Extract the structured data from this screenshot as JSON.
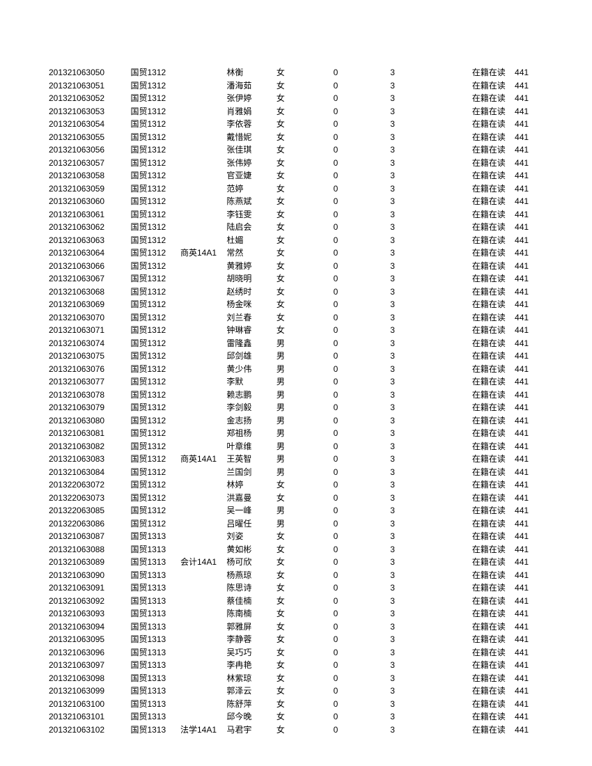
{
  "table": {
    "columns": {
      "id_width": 115,
      "class_width": 70,
      "group_width": 65,
      "name_width": 70,
      "gender_width": 80,
      "n1_width": 80,
      "n2_width": 115,
      "status_width": 60,
      "code_width": 40
    },
    "font_size": 12,
    "row_height": 18.5,
    "text_color": "#000000",
    "background_color": "#ffffff",
    "rows": [
      {
        "id": "201321063050",
        "class": "国贸1312",
        "group": "",
        "name": "林衡",
        "gender": "女",
        "n1": "0",
        "n2": "3",
        "status": "在籍在读",
        "code": "441"
      },
      {
        "id": "201321063051",
        "class": "国贸1312",
        "group": "",
        "name": "潘海茹",
        "gender": "女",
        "n1": "0",
        "n2": "3",
        "status": "在籍在读",
        "code": "441"
      },
      {
        "id": "201321063052",
        "class": "国贸1312",
        "group": "",
        "name": "张伊婷",
        "gender": "女",
        "n1": "0",
        "n2": "3",
        "status": "在籍在读",
        "code": "441"
      },
      {
        "id": "201321063053",
        "class": "国贸1312",
        "group": "",
        "name": "肖雅娟",
        "gender": "女",
        "n1": "0",
        "n2": "3",
        "status": "在籍在读",
        "code": "441"
      },
      {
        "id": "201321063054",
        "class": "国贸1312",
        "group": "",
        "name": "李依蓉",
        "gender": "女",
        "n1": "0",
        "n2": "3",
        "status": "在籍在读",
        "code": "441"
      },
      {
        "id": "201321063055",
        "class": "国贸1312",
        "group": "",
        "name": "戴惜妮",
        "gender": "女",
        "n1": "0",
        "n2": "3",
        "status": "在籍在读",
        "code": "441"
      },
      {
        "id": "201321063056",
        "class": "国贸1312",
        "group": "",
        "name": "张佳琪",
        "gender": "女",
        "n1": "0",
        "n2": "3",
        "status": "在籍在读",
        "code": "441"
      },
      {
        "id": "201321063057",
        "class": "国贸1312",
        "group": "",
        "name": "张伟婷",
        "gender": "女",
        "n1": "0",
        "n2": "3",
        "status": "在籍在读",
        "code": "441"
      },
      {
        "id": "201321063058",
        "class": "国贸1312",
        "group": "",
        "name": "官亚婕",
        "gender": "女",
        "n1": "0",
        "n2": "3",
        "status": "在籍在读",
        "code": "441"
      },
      {
        "id": "201321063059",
        "class": "国贸1312",
        "group": "",
        "name": "范婷",
        "gender": "女",
        "n1": "0",
        "n2": "3",
        "status": "在籍在读",
        "code": "441"
      },
      {
        "id": "201321063060",
        "class": "国贸1312",
        "group": "",
        "name": "陈燕斌",
        "gender": "女",
        "n1": "0",
        "n2": "3",
        "status": "在籍在读",
        "code": "441"
      },
      {
        "id": "201321063061",
        "class": "国贸1312",
        "group": "",
        "name": "李钰雯",
        "gender": "女",
        "n1": "0",
        "n2": "3",
        "status": "在籍在读",
        "code": "441"
      },
      {
        "id": "201321063062",
        "class": "国贸1312",
        "group": "",
        "name": "陆启会",
        "gender": "女",
        "n1": "0",
        "n2": "3",
        "status": "在籍在读",
        "code": "441"
      },
      {
        "id": "201321063063",
        "class": "国贸1312",
        "group": "",
        "name": "杜媚",
        "gender": "女",
        "n1": "0",
        "n2": "3",
        "status": "在籍在读",
        "code": "441"
      },
      {
        "id": "201321063064",
        "class": "国贸1312",
        "group": "商英14A1",
        "name": "常然",
        "gender": "女",
        "n1": "0",
        "n2": "3",
        "status": "在籍在读",
        "code": "441"
      },
      {
        "id": "201321063066",
        "class": "国贸1312",
        "group": "",
        "name": "黄雅婷",
        "gender": "女",
        "n1": "0",
        "n2": "3",
        "status": "在籍在读",
        "code": "441"
      },
      {
        "id": "201321063067",
        "class": "国贸1312",
        "group": "",
        "name": "胡晓明",
        "gender": "女",
        "n1": "0",
        "n2": "3",
        "status": "在籍在读",
        "code": "441"
      },
      {
        "id": "201321063068",
        "class": "国贸1312",
        "group": "",
        "name": "赵绣时",
        "gender": "女",
        "n1": "0",
        "n2": "3",
        "status": "在籍在读",
        "code": "441"
      },
      {
        "id": "201321063069",
        "class": "国贸1312",
        "group": "",
        "name": "杨金咪",
        "gender": "女",
        "n1": "0",
        "n2": "3",
        "status": "在籍在读",
        "code": "441"
      },
      {
        "id": "201321063070",
        "class": "国贸1312",
        "group": "",
        "name": "刘兰春",
        "gender": "女",
        "n1": "0",
        "n2": "3",
        "status": "在籍在读",
        "code": "441"
      },
      {
        "id": "201321063071",
        "class": "国贸1312",
        "group": "",
        "name": "钟琳睿",
        "gender": "女",
        "n1": "0",
        "n2": "3",
        "status": "在籍在读",
        "code": "441"
      },
      {
        "id": "201321063074",
        "class": "国贸1312",
        "group": "",
        "name": "雷隆鑫",
        "gender": "男",
        "n1": "0",
        "n2": "3",
        "status": "在籍在读",
        "code": "441"
      },
      {
        "id": "201321063075",
        "class": "国贸1312",
        "group": "",
        "name": "邱剑雄",
        "gender": "男",
        "n1": "0",
        "n2": "3",
        "status": "在籍在读",
        "code": "441"
      },
      {
        "id": "201321063076",
        "class": "国贸1312",
        "group": "",
        "name": "黄少伟",
        "gender": "男",
        "n1": "0",
        "n2": "3",
        "status": "在籍在读",
        "code": "441"
      },
      {
        "id": "201321063077",
        "class": "国贸1312",
        "group": "",
        "name": "李默",
        "gender": "男",
        "n1": "0",
        "n2": "3",
        "status": "在籍在读",
        "code": "441"
      },
      {
        "id": "201321063078",
        "class": "国贸1312",
        "group": "",
        "name": "赖志鹏",
        "gender": "男",
        "n1": "0",
        "n2": "3",
        "status": "在籍在读",
        "code": "441"
      },
      {
        "id": "201321063079",
        "class": "国贸1312",
        "group": "",
        "name": "李剑毅",
        "gender": "男",
        "n1": "0",
        "n2": "3",
        "status": "在籍在读",
        "code": "441"
      },
      {
        "id": "201321063080",
        "class": "国贸1312",
        "group": "",
        "name": "金志扬",
        "gender": "男",
        "n1": "0",
        "n2": "3",
        "status": "在籍在读",
        "code": "441"
      },
      {
        "id": "201321063081",
        "class": "国贸1312",
        "group": "",
        "name": "郑祖杨",
        "gender": "男",
        "n1": "0",
        "n2": "3",
        "status": "在籍在读",
        "code": "441"
      },
      {
        "id": "201321063082",
        "class": "国贸1312",
        "group": "",
        "name": "叶章维",
        "gender": "男",
        "n1": "0",
        "n2": "3",
        "status": "在籍在读",
        "code": "441"
      },
      {
        "id": "201321063083",
        "class": "国贸1312",
        "group": "商英14A1",
        "name": "王英智",
        "gender": "男",
        "n1": "0",
        "n2": "3",
        "status": "在籍在读",
        "code": "441"
      },
      {
        "id": "201321063084",
        "class": "国贸1312",
        "group": "",
        "name": "兰国剑",
        "gender": "男",
        "n1": "0",
        "n2": "3",
        "status": "在籍在读",
        "code": "441"
      },
      {
        "id": "201322063072",
        "class": "国贸1312",
        "group": "",
        "name": "林婷",
        "gender": "女",
        "n1": "0",
        "n2": "3",
        "status": "在籍在读",
        "code": "441"
      },
      {
        "id": "201322063073",
        "class": "国贸1312",
        "group": "",
        "name": "洪嘉曼",
        "gender": "女",
        "n1": "0",
        "n2": "3",
        "status": "在籍在读",
        "code": "441"
      },
      {
        "id": "201322063085",
        "class": "国贸1312",
        "group": "",
        "name": "吴一峰",
        "gender": "男",
        "n1": "0",
        "n2": "3",
        "status": "在籍在读",
        "code": "441"
      },
      {
        "id": "201322063086",
        "class": "国贸1312",
        "group": "",
        "name": "吕曜任",
        "gender": "男",
        "n1": "0",
        "n2": "3",
        "status": "在籍在读",
        "code": "441"
      },
      {
        "id": "201321063087",
        "class": "国贸1313",
        "group": "",
        "name": "刘姿",
        "gender": "女",
        "n1": "0",
        "n2": "3",
        "status": "在籍在读",
        "code": "441"
      },
      {
        "id": "201321063088",
        "class": "国贸1313",
        "group": "",
        "name": "黄如彬",
        "gender": "女",
        "n1": "0",
        "n2": "3",
        "status": "在籍在读",
        "code": "441"
      },
      {
        "id": "201321063089",
        "class": "国贸1313",
        "group": "会计14A1",
        "name": "杨可欣",
        "gender": "女",
        "n1": "0",
        "n2": "3",
        "status": "在籍在读",
        "code": "441"
      },
      {
        "id": "201321063090",
        "class": "国贸1313",
        "group": "",
        "name": "杨燕琼",
        "gender": "女",
        "n1": "0",
        "n2": "3",
        "status": "在籍在读",
        "code": "441"
      },
      {
        "id": "201321063091",
        "class": "国贸1313",
        "group": "",
        "name": "陈思诗",
        "gender": "女",
        "n1": "0",
        "n2": "3",
        "status": "在籍在读",
        "code": "441"
      },
      {
        "id": "201321063092",
        "class": "国贸1313",
        "group": "",
        "name": "蔡佳楠",
        "gender": "女",
        "n1": "0",
        "n2": "3",
        "status": "在籍在读",
        "code": "441"
      },
      {
        "id": "201321063093",
        "class": "国贸1313",
        "group": "",
        "name": "陈南楠",
        "gender": "女",
        "n1": "0",
        "n2": "3",
        "status": "在籍在读",
        "code": "441"
      },
      {
        "id": "201321063094",
        "class": "国贸1313",
        "group": "",
        "name": "郭雅屏",
        "gender": "女",
        "n1": "0",
        "n2": "3",
        "status": "在籍在读",
        "code": "441"
      },
      {
        "id": "201321063095",
        "class": "国贸1313",
        "group": "",
        "name": "李静蓉",
        "gender": "女",
        "n1": "0",
        "n2": "3",
        "status": "在籍在读",
        "code": "441"
      },
      {
        "id": "201321063096",
        "class": "国贸1313",
        "group": "",
        "name": "吴巧巧",
        "gender": "女",
        "n1": "0",
        "n2": "3",
        "status": "在籍在读",
        "code": "441"
      },
      {
        "id": "201321063097",
        "class": "国贸1313",
        "group": "",
        "name": "李冉艳",
        "gender": "女",
        "n1": "0",
        "n2": "3",
        "status": "在籍在读",
        "code": "441"
      },
      {
        "id": "201321063098",
        "class": "国贸1313",
        "group": "",
        "name": "林紫琼",
        "gender": "女",
        "n1": "0",
        "n2": "3",
        "status": "在籍在读",
        "code": "441"
      },
      {
        "id": "201321063099",
        "class": "国贸1313",
        "group": "",
        "name": "郭泽云",
        "gender": "女",
        "n1": "0",
        "n2": "3",
        "status": "在籍在读",
        "code": "441"
      },
      {
        "id": "201321063100",
        "class": "国贸1313",
        "group": "",
        "name": "陈舒萍",
        "gender": "女",
        "n1": "0",
        "n2": "3",
        "status": "在籍在读",
        "code": "441"
      },
      {
        "id": "201321063101",
        "class": "国贸1313",
        "group": "",
        "name": "邱今晚",
        "gender": "女",
        "n1": "0",
        "n2": "3",
        "status": "在籍在读",
        "code": "441"
      },
      {
        "id": "201321063102",
        "class": "国贸1313",
        "group": "法学14A1",
        "name": "马君宇",
        "gender": "女",
        "n1": "0",
        "n2": "3",
        "status": "在籍在读",
        "code": "441"
      }
    ]
  }
}
